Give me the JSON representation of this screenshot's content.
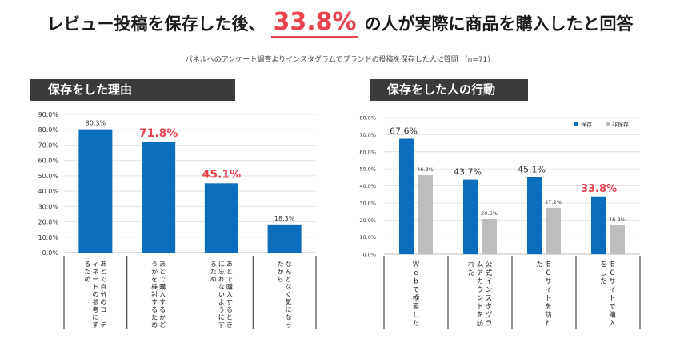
{
  "header": {
    "title_before": "レビュー投稿を保存した後、",
    "title_highlight": "33.8%",
    "title_after": "の人が実際に商品を購入したと回答",
    "subtitle": "パネルへのアンケート調査よりインスタグラムでブランドの投稿を保存した人に質問 （n=71）"
  },
  "colors": {
    "blue": "#0a6ebd",
    "gray": "#bdbdbd",
    "highlight": "#e8434f",
    "title_bg": "#3b3b3b"
  },
  "chart_data": [
    {
      "type": "bar",
      "title": "保存をした理由",
      "categories": [
        "あとで自分のコーディネートの参考にするため",
        "あとで購入するかどうかを検討するため",
        "あとで購入するときに忘れないようにするため",
        "なんとなく気になったから"
      ],
      "values": [
        80.3,
        71.8,
        45.1,
        18.3
      ],
      "value_labels": [
        "80.3%",
        "71.8%",
        "45.1%",
        "18.3%"
      ],
      "highlighted": [
        false,
        true,
        true,
        false
      ],
      "ylim": [
        0,
        90
      ],
      "yticks": [
        "0.0%",
        "10.0%",
        "20.0%",
        "30.0%",
        "40.0%",
        "50.0%",
        "60.0%",
        "70.0%",
        "80.0%",
        "90.0%"
      ],
      "grid": true
    },
    {
      "type": "bar",
      "title": "保存をした人の行動",
      "categories": [
        "Webで検索した",
        "公式インスタグラムアカウントを訪れた",
        "ECサイトを訪れた",
        "ECサイトで購入をした"
      ],
      "legend_position": "top-right",
      "series": [
        {
          "name": "保存",
          "values": [
            67.6,
            43.7,
            45.1,
            33.8
          ],
          "value_labels": [
            "67.6%",
            "43.7%",
            "45.1%",
            "33.8%"
          ],
          "highlighted": [
            false,
            false,
            false,
            true
          ]
        },
        {
          "name": "非保存",
          "values": [
            46.3,
            20.6,
            27.2,
            16.9
          ],
          "value_labels": [
            "46.3%",
            "20.6%",
            "27.2%",
            "16.9%"
          ]
        }
      ],
      "ylim": [
        0,
        80
      ],
      "yticks": [
        "0.0%",
        "10.0%",
        "20.0%",
        "30.0%",
        "40.0%",
        "50.0%",
        "60.0%",
        "70.0%",
        "80.0%"
      ],
      "grid": true
    }
  ]
}
